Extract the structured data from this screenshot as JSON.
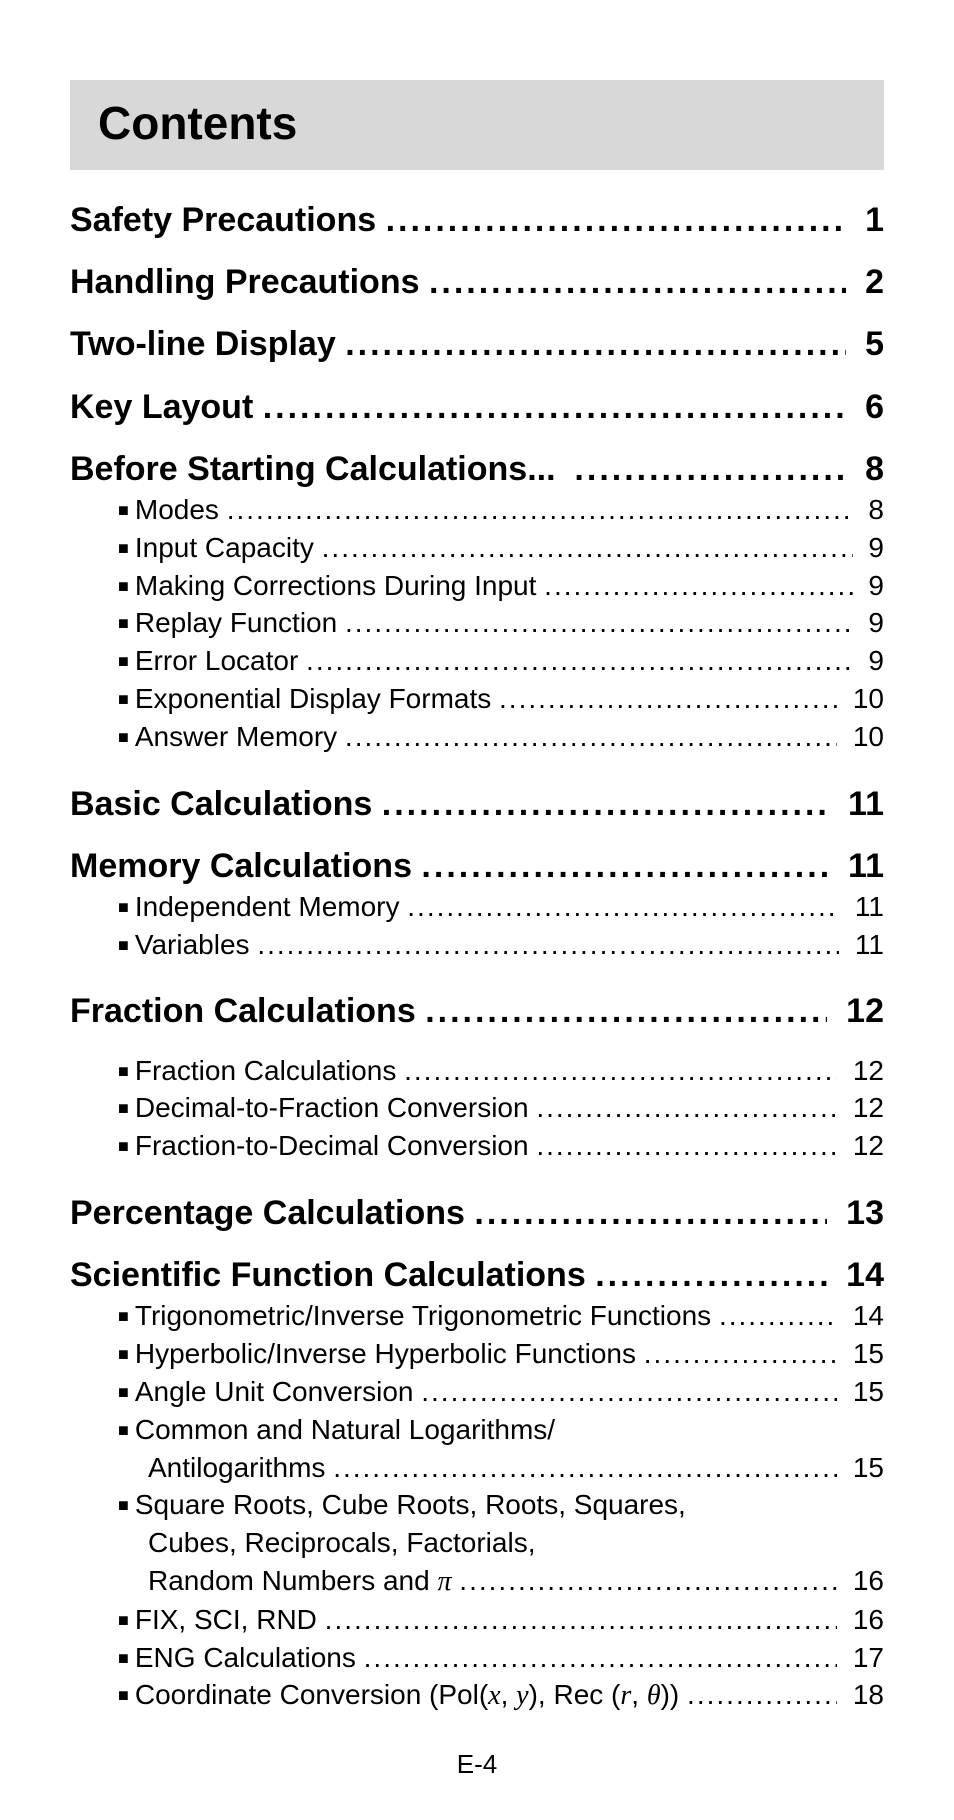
{
  "title": "Contents",
  "footer": "E-4",
  "dot_char": ".",
  "sections": [
    {
      "label": "Safety Precautions ",
      "page": "1"
    },
    {
      "label": "Handling Precautions ",
      "page": "2"
    },
    {
      "label": "Two-line Display ",
      "page": "5"
    },
    {
      "label": "Key Layout ",
      "page": "6"
    },
    {
      "label": "Before Starting Calculations...  ",
      "page": "8",
      "subs": [
        {
          "label": "Modes ",
          "page": "8"
        },
        {
          "label": "Input Capacity ",
          "page": "9"
        },
        {
          "label": "Making Corrections During Input ",
          "page": "9"
        },
        {
          "label": "Replay Function ",
          "page": "9"
        },
        {
          "label": "Error Locator ",
          "page": "9"
        },
        {
          "label": "Exponential Display Formats ",
          "page": "10"
        },
        {
          "label": "Answer Memory ",
          "page": "10"
        }
      ]
    },
    {
      "label": "Basic Calculations ",
      "page": "11",
      "gap": "md"
    },
    {
      "label": "Memory Calculations ",
      "page": "11",
      "subs": [
        {
          "label": "Independent Memory ",
          "page": "11"
        },
        {
          "label": "Variables ",
          "page": "11"
        }
      ]
    },
    {
      "label": "Fraction Calculations ",
      "page": "12",
      "gap": "md",
      "subs_gap_before": true,
      "subs": [
        {
          "label": "Fraction Calculations ",
          "page": "12"
        },
        {
          "label": "Decimal-to-Fraction Conversion ",
          "page": "12"
        },
        {
          "label": "Fraction-to-Decimal Conversion ",
          "page": "12"
        }
      ]
    },
    {
      "label": "Percentage Calculations ",
      "page": "13",
      "gap": "md"
    },
    {
      "label": "Scientific Function Calculations ",
      "page": "14",
      "subs": [
        {
          "label": "Trigonometric/Inverse Trigonometric Functions ",
          "page": "14"
        },
        {
          "label": "Hyperbolic/Inverse Hyperbolic Functions ",
          "page": "15"
        },
        {
          "label": "Angle Unit Conversion ",
          "page": "15"
        },
        {
          "label": "Common and Natural Logarithms/",
          "cont": "Antilogarithms ",
          "page": "15"
        },
        {
          "label": "Square Roots, Cube Roots, Roots, Squares,",
          "cont": "Cubes, Reciprocals, Factorials,",
          "cont2_html": "Random Numbers and <span class=\"math-i\">π</span> ",
          "page": "16"
        },
        {
          "label": "FIX, SCI, RND ",
          "page": "16"
        },
        {
          "label": "ENG Calculations ",
          "page": "17"
        },
        {
          "label_html": "Coordinate Conversion (Pol(<span class=\"math-i\">x</span>, <span class=\"math-i\">y</span>), Rec (<span class=\"math-i\">r</span>, <span class=\"math-i\">θ</span>)) ",
          "page": "18"
        }
      ]
    }
  ]
}
